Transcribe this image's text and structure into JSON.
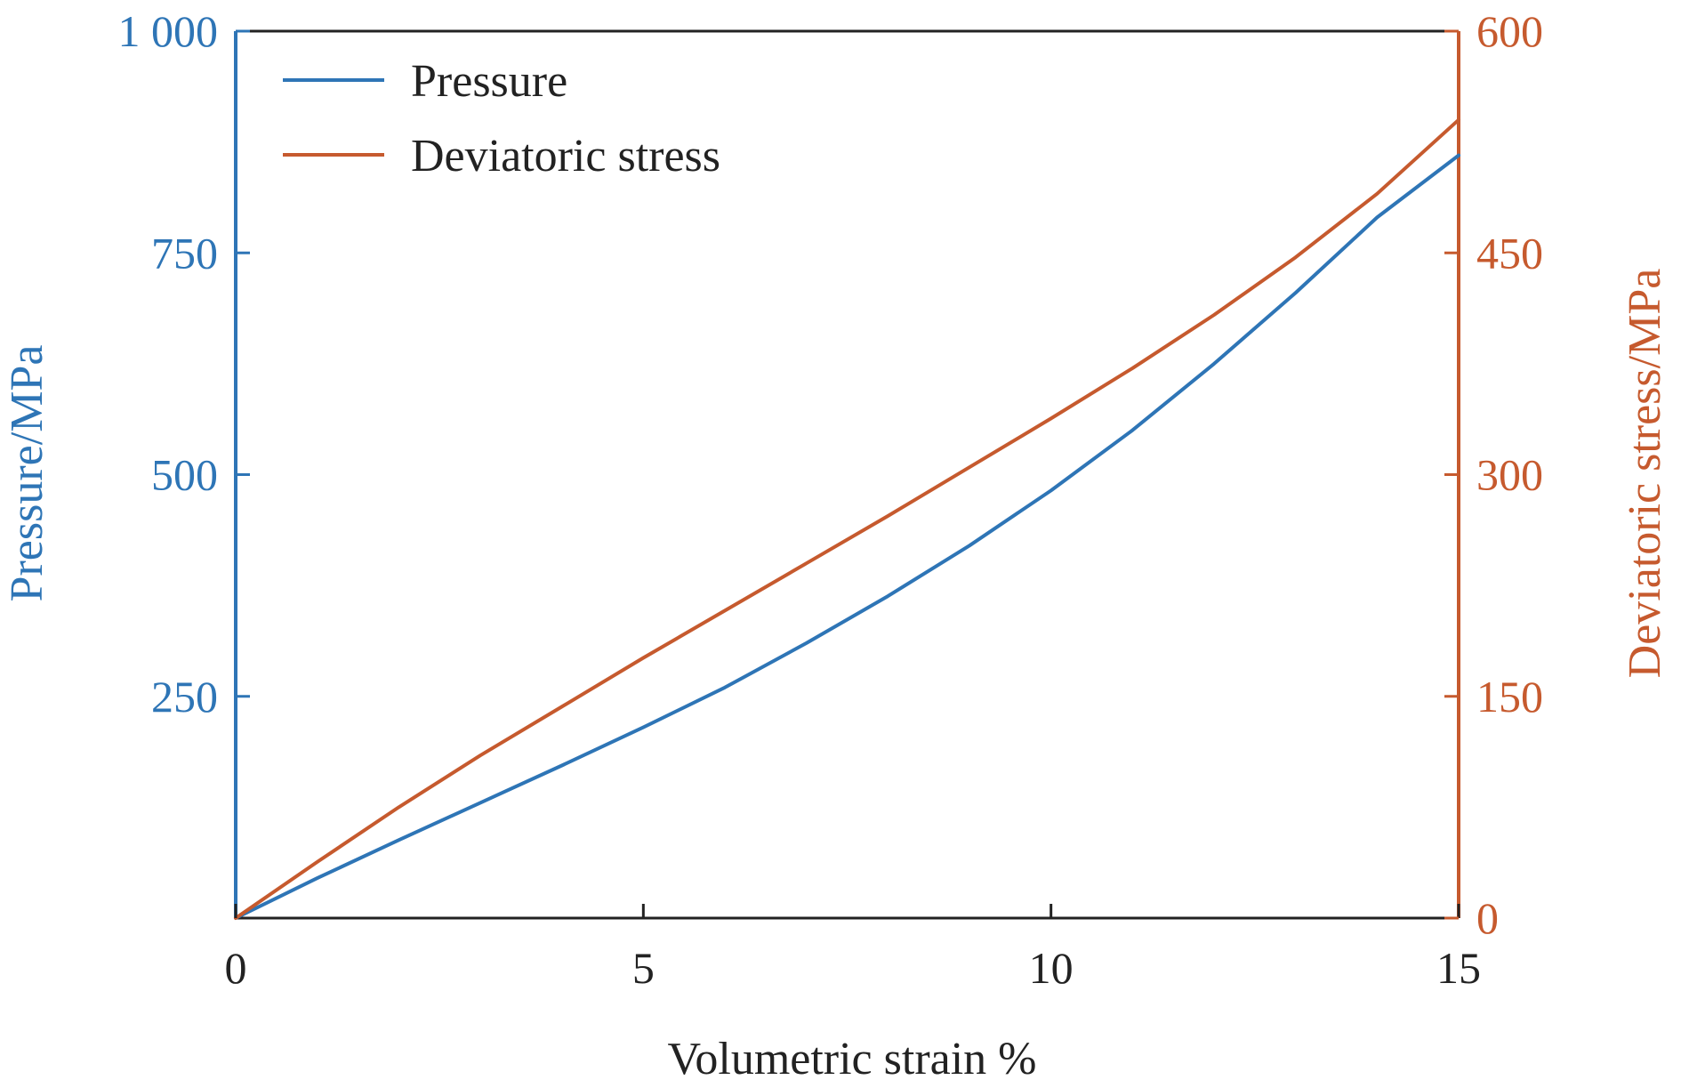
{
  "chart_data": {
    "type": "line",
    "title": "",
    "xlabel": "Volumetric strain %",
    "ylabel_left": "Pressure/MPa",
    "ylabel_right": "Deviatoric stress/MPa",
    "xlim": [
      0,
      15
    ],
    "ylim_left": [
      0,
      1000
    ],
    "ylim_right": [
      0,
      600
    ],
    "x_ticks": [
      "0",
      "5",
      "10",
      "15"
    ],
    "y_left_ticks": [
      "250",
      "500",
      "750",
      "1 000"
    ],
    "y_right_ticks": [
      "0",
      "150",
      "300",
      "450",
      "600"
    ],
    "grid": false,
    "legend_position": "top-left",
    "series": [
      {
        "name": "Pressure",
        "axis": "left",
        "color": "#2e75b6",
        "x": [
          0,
          1,
          2,
          3,
          4,
          5,
          6,
          7,
          8,
          9,
          10,
          11,
          12,
          13,
          14,
          15
        ],
        "y": [
          0,
          45,
          88,
          130,
          172,
          215,
          260,
          310,
          363,
          420,
          482,
          550,
          625,
          705,
          790,
          860
        ]
      },
      {
        "name": "Deviatoric stress",
        "axis": "right",
        "color": "#c65a2e",
        "x": [
          0,
          1,
          2,
          3,
          4,
          5,
          6,
          7,
          8,
          9,
          10,
          11,
          12,
          13,
          14,
          15
        ],
        "y": [
          0,
          38,
          75,
          110,
          143,
          176,
          208,
          240,
          272,
          305,
          338,
          372,
          408,
          447,
          490,
          540
        ]
      }
    ]
  }
}
